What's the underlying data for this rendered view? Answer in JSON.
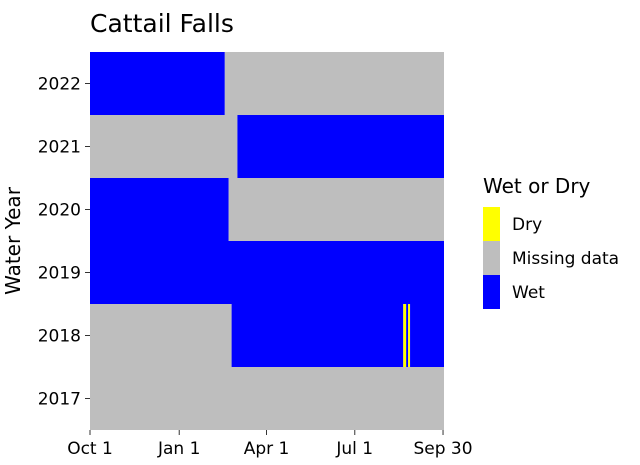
{
  "chart_data": {
    "type": "heatmap",
    "title": "Cattail Falls",
    "xlabel": "",
    "ylabel": "Water Year",
    "x_ticks": [
      "Oct 1",
      "Jan 1",
      "Apr 1",
      "Jul 1",
      "Sep 30"
    ],
    "x_tick_days": [
      0,
      92,
      182,
      273,
      364
    ],
    "x_range_days": [
      0,
      365
    ],
    "y_categories": [
      "2017",
      "2018",
      "2019",
      "2020",
      "2021",
      "2022"
    ],
    "legend": {
      "title": "Wet or Dry",
      "position": "right",
      "entries": [
        {
          "label": "Dry",
          "color": "#ffff00"
        },
        {
          "label": "Missing data",
          "color": "#bebebe"
        },
        {
          "label": "Wet",
          "color": "#0000ff"
        }
      ]
    },
    "status_colors": {
      "Dry": "#ffff00",
      "Missing data": "#bebebe",
      "Wet": "#0000ff"
    },
    "segments": [
      {
        "year": "2017",
        "status": "Missing data",
        "start": "Oct 1",
        "end": "Sep 30"
      },
      {
        "year": "2018",
        "status": "Missing data",
        "start": "Oct 1",
        "end": "Feb 24"
      },
      {
        "year": "2018",
        "status": "Wet",
        "start": "Feb 24",
        "end": "Aug 20"
      },
      {
        "year": "2018",
        "status": "Dry",
        "start": "Aug 20",
        "end": "Aug 23"
      },
      {
        "year": "2018",
        "status": "Wet",
        "start": "Aug 23",
        "end": "Aug 25"
      },
      {
        "year": "2018",
        "status": "Dry",
        "start": "Aug 25",
        "end": "Aug 27"
      },
      {
        "year": "2018",
        "status": "Wet",
        "start": "Aug 27",
        "end": "Sep 30"
      },
      {
        "year": "2019",
        "status": "Wet",
        "start": "Oct 1",
        "end": "Sep 30"
      },
      {
        "year": "2020",
        "status": "Wet",
        "start": "Oct 1",
        "end": "Feb 21"
      },
      {
        "year": "2020",
        "status": "Missing data",
        "start": "Feb 21",
        "end": "Sep 30"
      },
      {
        "year": "2021",
        "status": "Missing data",
        "start": "Oct 1",
        "end": "Mar 2"
      },
      {
        "year": "2021",
        "status": "Wet",
        "start": "Mar 2",
        "end": "Sep 30"
      },
      {
        "year": "2022",
        "status": "Wet",
        "start": "Oct 1",
        "end": "Feb 17"
      },
      {
        "year": "2022",
        "status": "Missing data",
        "start": "Feb 17",
        "end": "Sep 30"
      }
    ]
  }
}
